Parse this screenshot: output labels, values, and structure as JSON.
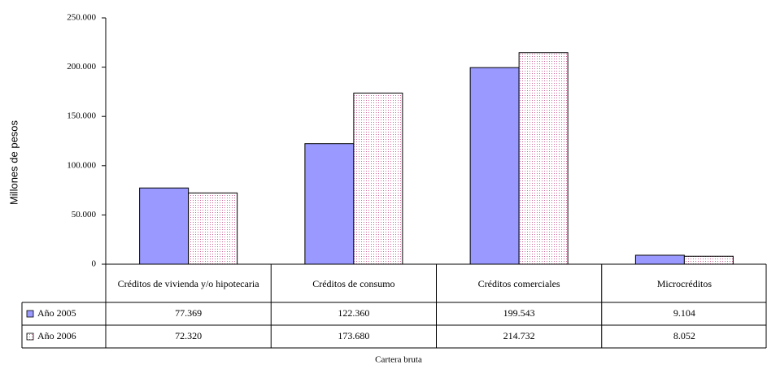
{
  "chart_data": {
    "type": "bar",
    "y_axis_label": "Millones de pesos",
    "x_axis_label": "Cartera bruta",
    "categories": [
      "Créditos de vivienda y/o hipotecaria",
      "Créditos de consumo",
      "Créditos comerciales",
      "Microcréditos"
    ],
    "series": [
      {
        "name": "Año 2005",
        "color": "#9999ff",
        "values": [
          77369,
          122360,
          199543,
          9104
        ],
        "value_labels": [
          "77.369",
          "122.360",
          "199.543",
          "9.104"
        ]
      },
      {
        "name": "Año 2006",
        "color": "#cc6699",
        "pattern": "dots",
        "values": [
          72320,
          173680,
          214732,
          8052
        ],
        "value_labels": [
          "72.320",
          "173.680",
          "214.732",
          "8.052"
        ]
      }
    ],
    "ylim": [
      0,
      250000
    ],
    "yticks": [
      0,
      {
        "value": 50000,
        "label": "50.000"
      },
      {
        "value": 100000,
        "label": "100.000"
      },
      {
        "value": 150000,
        "label": "150.000"
      },
      {
        "value": 200000,
        "label": "200.000"
      },
      {
        "value": 250000,
        "label": "250.000"
      }
    ]
  }
}
